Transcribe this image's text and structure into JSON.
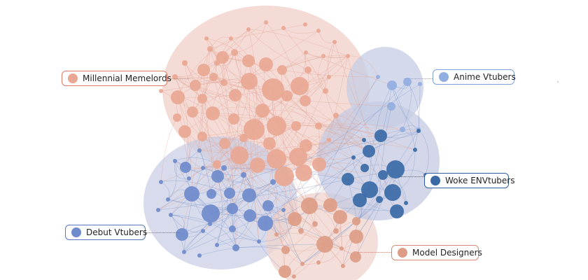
{
  "communities": [
    {
      "id": "millennial",
      "name": "Millennial Memelords",
      "fill": "#f0cfc8",
      "node": "#e8a792",
      "label_color": "#e07a6a"
    },
    {
      "id": "anime",
      "name": "Anime Vtubers",
      "fill": "#c6cde4",
      "node": "#92aee0",
      "label_color": "#7fa0de"
    },
    {
      "id": "woke",
      "name": "Woke ENVtubers",
      "fill": "#c4c9e2",
      "node": "#3a6aa6",
      "label_color": "#2f5f9e"
    },
    {
      "id": "debut",
      "name": "Debut Vtubers",
      "fill": "#c9cfe6",
      "node": "#6f8bcc",
      "label_color": "#5877bf"
    },
    {
      "id": "model",
      "name": "Model Designers",
      "fill": "#efd3cc",
      "node": "#dd9c86",
      "label_color": "#d88a7a"
    }
  ],
  "colors": {
    "edge_pink": "#e2a395",
    "edge_blue": "#7f96cc",
    "background": "#ffffff"
  }
}
